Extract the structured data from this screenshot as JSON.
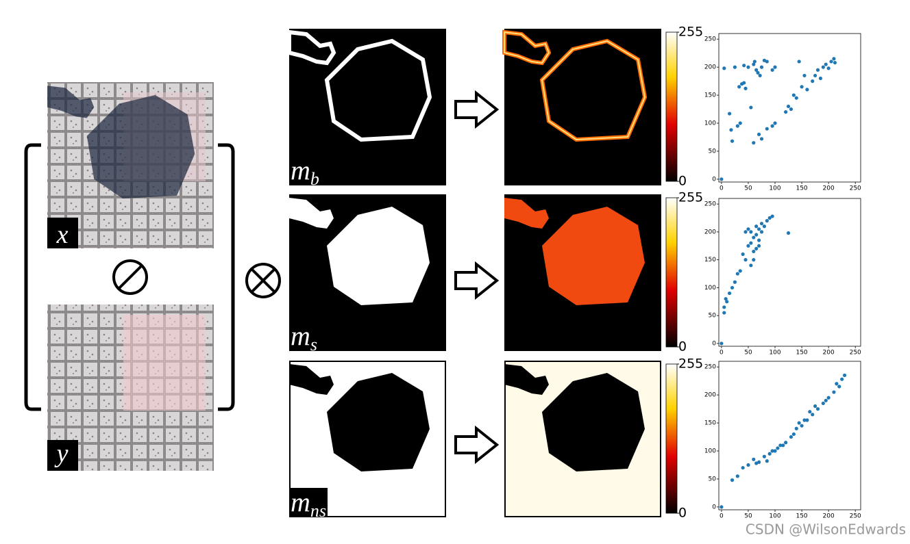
{
  "labels": {
    "x": "x",
    "y": "y",
    "masks": [
      {
        "main": "m",
        "sub": "b"
      },
      {
        "main": "m",
        "sub": "s"
      },
      {
        "main": "m",
        "sub": "ns"
      }
    ]
  },
  "colorbars": [
    {
      "lim": [
        0,
        255
      ],
      "ticks": [
        0,
        255
      ]
    },
    {
      "lim": [
        0,
        255
      ],
      "ticks": [
        0,
        255
      ]
    },
    {
      "lim": [
        0,
        255
      ],
      "ticks": [
        0,
        255
      ]
    }
  ],
  "watermark": "CSDN @WilsonEdwards",
  "chart_data": [
    {
      "type": "scatter",
      "color": "#1f77b4",
      "xlim": [
        -5,
        260
      ],
      "ylim": [
        -5,
        260
      ],
      "xticks": [
        0,
        50,
        100,
        150,
        200,
        250
      ],
      "yticks": [
        0,
        50,
        100,
        150,
        200,
        250
      ],
      "x": [
        0,
        5,
        15,
        18,
        20,
        25,
        30,
        35,
        33,
        38,
        42,
        45,
        42,
        50,
        55,
        60,
        62,
        65,
        68,
        72,
        75,
        80,
        85,
        95,
        100,
        60,
        70,
        75,
        85,
        95,
        100,
        120,
        125,
        130,
        135,
        140,
        145,
        150,
        155,
        160,
        170,
        175,
        180,
        185,
        190,
        195,
        200,
        205,
        210,
        212
      ],
      "values": [
        0,
        198,
        117,
        88,
        68,
        200,
        95,
        100,
        165,
        170,
        172,
        162,
        203,
        200,
        128,
        205,
        210,
        195,
        190,
        185,
        200,
        212,
        210,
        195,
        200,
        65,
        80,
        72,
        90,
        95,
        100,
        120,
        130,
        125,
        150,
        145,
        210,
        165,
        185,
        160,
        175,
        185,
        195,
        180,
        200,
        205,
        198,
        210,
        215,
        208
      ]
    },
    {
      "type": "scatter",
      "color": "#1f77b4",
      "xlim": [
        -5,
        260
      ],
      "ylim": [
        -5,
        260
      ],
      "xticks": [
        0,
        50,
        100,
        150,
        200,
        250
      ],
      "yticks": [
        0,
        50,
        100,
        150,
        200,
        250
      ],
      "x": [
        0,
        5,
        5,
        8,
        10,
        15,
        20,
        25,
        30,
        35,
        40,
        45,
        50,
        50,
        55,
        55,
        60,
        60,
        65,
        65,
        70,
        70,
        75,
        75,
        80,
        85,
        90,
        95,
        60,
        55,
        125,
        45,
        65,
        70
      ],
      "values": [
        0,
        55,
        65,
        80,
        75,
        90,
        100,
        110,
        125,
        130,
        160,
        150,
        175,
        205,
        180,
        200,
        190,
        165,
        195,
        210,
        185,
        205,
        200,
        215,
        210,
        220,
        225,
        228,
        150,
        140,
        198,
        200,
        170,
        175
      ]
    },
    {
      "type": "scatter",
      "color": "#1f77b4",
      "xlim": [
        -5,
        260
      ],
      "ylim": [
        -5,
        260
      ],
      "xticks": [
        0,
        50,
        100,
        150,
        200,
        250
      ],
      "yticks": [
        0,
        50,
        100,
        150,
        200,
        250
      ],
      "x": [
        0,
        20,
        30,
        40,
        50,
        60,
        70,
        80,
        90,
        100,
        110,
        120,
        130,
        140,
        150,
        160,
        170,
        180,
        190,
        200,
        210,
        220,
        230,
        225,
        215,
        195,
        175,
        165,
        155,
        145,
        135,
        115,
        105,
        95,
        85,
        65
      ],
      "values": [
        0,
        48,
        55,
        70,
        75,
        85,
        80,
        90,
        95,
        100,
        110,
        115,
        125,
        140,
        145,
        155,
        165,
        175,
        185,
        195,
        205,
        215,
        235,
        228,
        220,
        190,
        180,
        170,
        155,
        150,
        130,
        110,
        105,
        100,
        82,
        78
      ]
    }
  ]
}
